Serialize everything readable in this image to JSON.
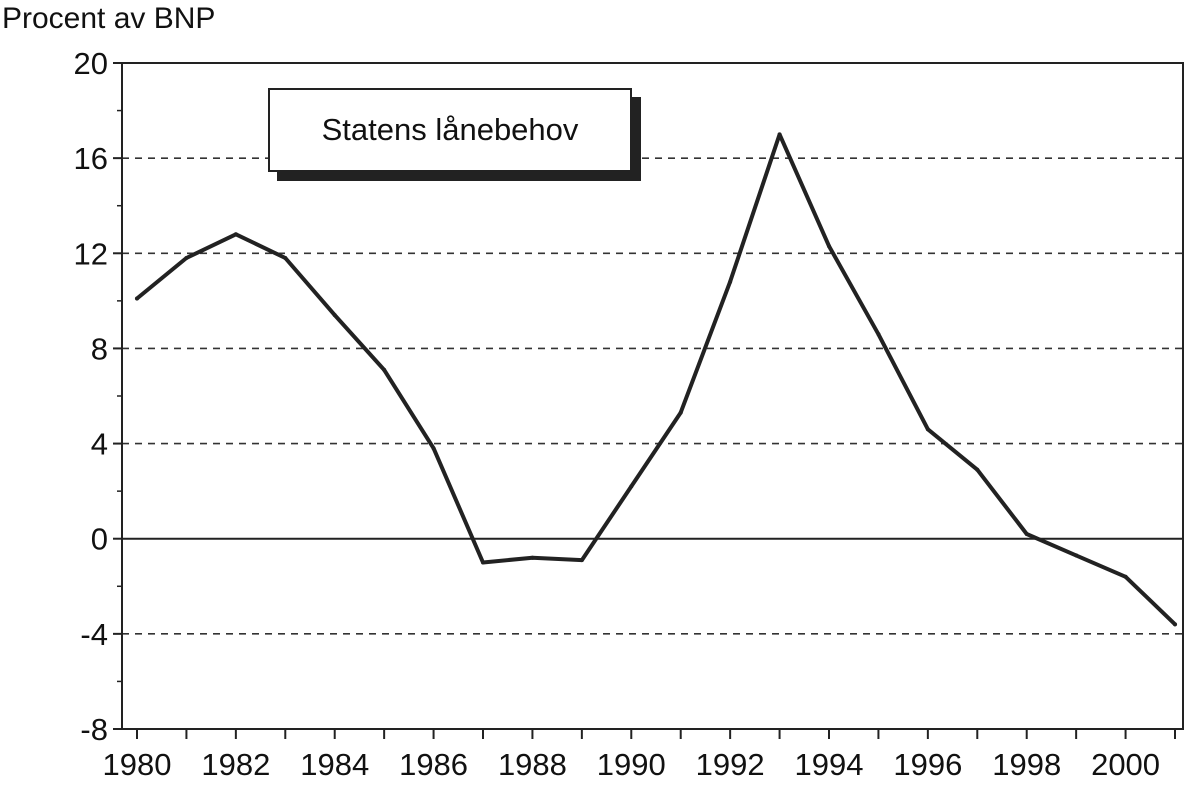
{
  "chart_data": {
    "type": "line",
    "ylabel": "Procent av BNP",
    "ylim": [
      -8,
      20
    ],
    "yticks": [
      "20",
      "16",
      "12",
      "8",
      "4",
      "0",
      "-4",
      "-8"
    ],
    "xlim": [
      1980,
      2001
    ],
    "xticks": [
      "1980",
      "1982",
      "1984",
      "1986",
      "1988",
      "1990",
      "1992",
      "1994",
      "1996",
      "1998",
      "2000"
    ],
    "grid": "horizontal dashed",
    "legend_placement": "top-left",
    "series": [
      {
        "name": "Statens lånebehov",
        "color": "#222222",
        "x": [
          1980,
          1981,
          1982,
          1983,
          1984,
          1985,
          1986,
          1987,
          1988,
          1989,
          1990,
          1991,
          1992,
          1993,
          1994,
          1995,
          1996,
          1997,
          1998,
          1999,
          2000,
          2001
        ],
        "values": [
          10.1,
          11.8,
          12.8,
          11.8,
          9.4,
          7.1,
          3.8,
          -1.0,
          -0.8,
          -0.9,
          2.2,
          5.3,
          10.8,
          17.0,
          12.3,
          8.6,
          4.6,
          2.9,
          0.2,
          -0.7,
          -1.6,
          -3.6
        ]
      }
    ]
  }
}
